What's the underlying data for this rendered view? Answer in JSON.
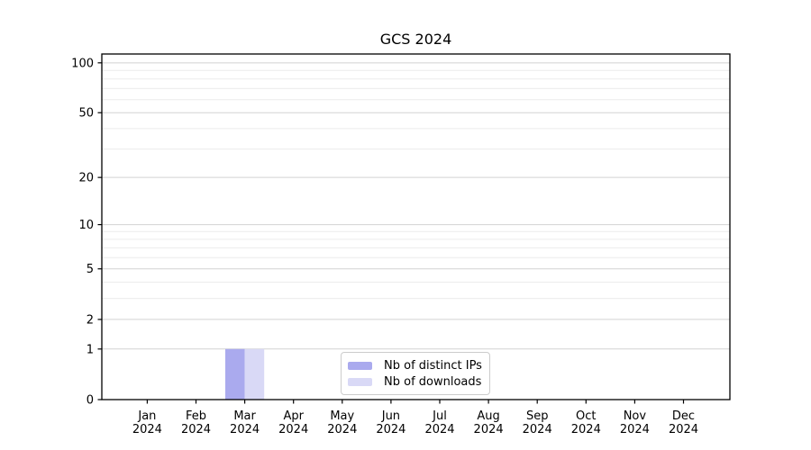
{
  "chart_data": {
    "type": "bar",
    "title": "GCS 2024",
    "categories": [
      "Jan",
      "Feb",
      "Mar",
      "Apr",
      "May",
      "Jun",
      "Jul",
      "Aug",
      "Sep",
      "Oct",
      "Nov",
      "Dec"
    ],
    "category_year": "2024",
    "series": [
      {
        "name": "Nb of distinct IPs",
        "color": "#aaaaee",
        "values": [
          0,
          0,
          1,
          0,
          0,
          0,
          0,
          0,
          0,
          0,
          0,
          0
        ]
      },
      {
        "name": "Nb of downloads",
        "color": "#d9d9f6",
        "values": [
          0,
          0,
          1,
          0,
          0,
          0,
          0,
          0,
          0,
          0,
          0,
          0
        ]
      }
    ],
    "xlabel": "",
    "ylabel": "",
    "yscale": "log1p",
    "yticks": [
      0,
      1,
      2,
      5,
      10,
      20,
      50,
      100
    ],
    "yticks_minor": [
      3,
      4,
      6,
      7,
      8,
      9,
      30,
      40,
      60,
      70,
      80,
      90
    ],
    "ylim": [
      0,
      113
    ],
    "grid": true,
    "legend_position": "lower center inside",
    "colors": {
      "grid_major": "#d2d2d2",
      "grid_minor": "#ececec",
      "spine": "#000000",
      "text": "#000000",
      "background": "#ffffff"
    }
  }
}
